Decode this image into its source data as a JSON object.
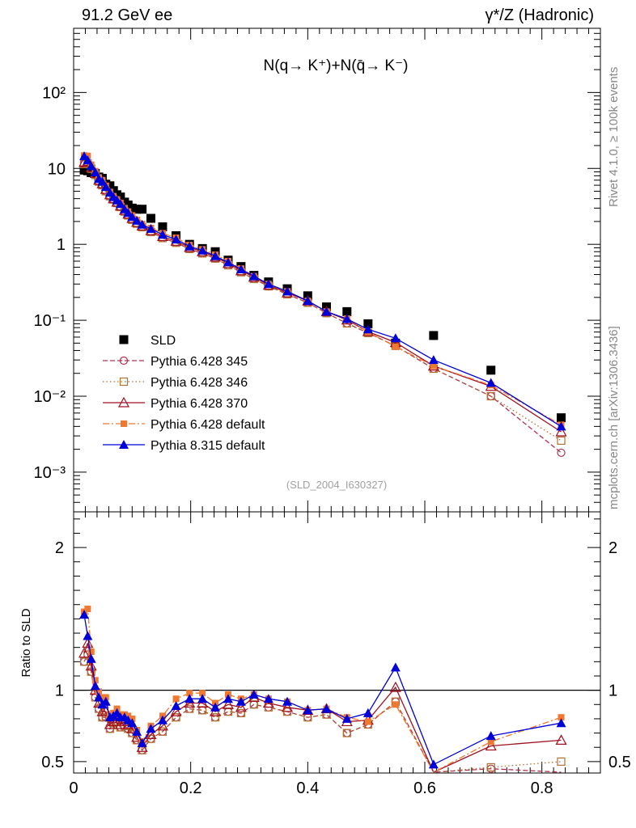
{
  "header": {
    "left": "91.2 GeV ee",
    "right": "γ*/Z (Hadronic)"
  },
  "side": {
    "rivet": "Rivet 4.1.0, ≥ 100k events",
    "site": "mcplots.cern.ch [arXiv:1306.3436]"
  },
  "chart_data": [
    {
      "type": "scatter",
      "panel": "main",
      "title": "N(q→ K⁺)+N(q̄→ K⁻)",
      "analysis_label": "(SLD_2004_I630327)",
      "xlabel": "",
      "ylabel": "",
      "yscale": "log",
      "xlim": [
        0,
        0.9
      ],
      "ylim": [
        0.0003,
        700
      ],
      "yticks": [
        "10⁻³",
        "10⁻²",
        "10⁻¹",
        "1",
        "10",
        "10²"
      ],
      "legend_position": "middle-left",
      "x": [
        0.018,
        0.024,
        0.03,
        0.037,
        0.043,
        0.049,
        0.055,
        0.062,
        0.068,
        0.074,
        0.08,
        0.087,
        0.093,
        0.1,
        0.108,
        0.117,
        0.132,
        0.152,
        0.175,
        0.198,
        0.22,
        0.242,
        0.264,
        0.286,
        0.308,
        0.333,
        0.365,
        0.4,
        0.432,
        0.467,
        0.503,
        0.55,
        0.615,
        0.713,
        0.833
      ],
      "series": [
        {
          "name": "SLD",
          "values": [
            9.5,
            9.3,
            8.8,
            8.6,
            7.7,
            7.4,
            6.2,
            5.9,
            5.1,
            4.5,
            4.2,
            3.6,
            3.3,
            3.0,
            2.9,
            2.9,
            2.2,
            1.7,
            1.3,
            1.0,
            0.88,
            0.8,
            0.62,
            0.51,
            0.39,
            0.32,
            0.26,
            0.21,
            0.15,
            0.13,
            0.09,
            0.05,
            0.063,
            0.022,
            0.0052
          ]
        },
        {
          "name": "Pythia 6.428 345",
          "values": [
            11.4,
            11.6,
            9.9,
            8.2,
            6.7,
            6.0,
            5.0,
            4.3,
            3.9,
            3.5,
            3.1,
            2.7,
            2.4,
            2.1,
            1.87,
            1.68,
            1.45,
            1.21,
            1.05,
            0.87,
            0.76,
            0.65,
            0.53,
            0.43,
            0.35,
            0.28,
            0.22,
            0.17,
            0.124,
            0.091,
            0.068,
            0.046,
            0.023,
            0.01,
            0.0018
          ]
        },
        {
          "name": "Pythia 6.428 346",
          "values": [
            11.4,
            11.6,
            9.9,
            8.2,
            6.7,
            6.0,
            5.0,
            4.3,
            3.9,
            3.5,
            3.1,
            2.7,
            2.4,
            2.1,
            1.87,
            1.68,
            1.45,
            1.21,
            1.05,
            0.87,
            0.76,
            0.65,
            0.53,
            0.43,
            0.35,
            0.28,
            0.22,
            0.17,
            0.124,
            0.091,
            0.068,
            0.046,
            0.023,
            0.01,
            0.0026
          ]
        },
        {
          "name": "Pythia 6.428 370",
          "values": [
            12.0,
            12.4,
            10.3,
            8.6,
            7.0,
            6.3,
            5.3,
            4.5,
            4.0,
            3.6,
            3.2,
            2.8,
            2.5,
            2.2,
            1.95,
            1.75,
            1.52,
            1.27,
            1.1,
            0.91,
            0.8,
            0.68,
            0.56,
            0.45,
            0.37,
            0.29,
            0.23,
            0.18,
            0.13,
            0.101,
            0.071,
            0.051,
            0.025,
            0.0135,
            0.0034
          ]
        },
        {
          "name": "Pythia 6.428 default",
          "values": [
            14.8,
            14.6,
            11.2,
            9.2,
            7.6,
            7.0,
            5.9,
            4.9,
            4.3,
            3.9,
            3.5,
            3.0,
            2.7,
            2.4,
            2.1,
            1.85,
            1.64,
            1.4,
            1.22,
            0.98,
            0.86,
            0.73,
            0.6,
            0.48,
            0.38,
            0.3,
            0.24,
            0.18,
            0.13,
            0.105,
            0.07,
            0.045,
            0.025,
            0.014,
            0.0042
          ]
        },
        {
          "name": "Pythia 8.315 default",
          "values": [
            14.5,
            12.8,
            10.7,
            8.9,
            7.3,
            6.7,
            5.7,
            4.8,
            4.2,
            3.8,
            3.4,
            2.9,
            2.6,
            2.3,
            2.05,
            1.82,
            1.6,
            1.34,
            1.16,
            0.94,
            0.83,
            0.7,
            0.58,
            0.47,
            0.38,
            0.3,
            0.24,
            0.18,
            0.13,
            0.104,
            0.076,
            0.058,
            0.03,
            0.015,
            0.004
          ]
        }
      ]
    },
    {
      "type": "line",
      "panel": "ratio",
      "ylabel": "Ratio to SLD",
      "xlabel": "",
      "xlim": [
        0,
        0.9
      ],
      "ylim": [
        0.42,
        2.25
      ],
      "xticks": [
        "0",
        "0.2",
        "0.4",
        "0.6",
        "0.8"
      ],
      "yticks": [
        "0.5",
        "1",
        "2"
      ],
      "reference_line": 1,
      "x": [
        0.018,
        0.024,
        0.03,
        0.037,
        0.043,
        0.049,
        0.055,
        0.062,
        0.068,
        0.074,
        0.08,
        0.087,
        0.093,
        0.1,
        0.108,
        0.117,
        0.132,
        0.152,
        0.175,
        0.198,
        0.22,
        0.242,
        0.264,
        0.286,
        0.308,
        0.333,
        0.365,
        0.4,
        0.432,
        0.467,
        0.503,
        0.55,
        0.615,
        0.713,
        0.833
      ],
      "series": [
        {
          "name": "Pythia 6.428 345",
          "values": [
            1.2,
            1.25,
            1.13,
            0.95,
            0.87,
            0.81,
            0.81,
            0.73,
            0.77,
            0.78,
            0.74,
            0.75,
            0.73,
            0.7,
            0.65,
            0.58,
            0.66,
            0.71,
            0.81,
            0.87,
            0.86,
            0.81,
            0.85,
            0.84,
            0.9,
            0.88,
            0.85,
            0.81,
            0.83,
            0.7,
            0.76,
            0.92,
            0.37,
            0.45,
            0.35
          ]
        },
        {
          "name": "Pythia 6.428 346",
          "values": [
            1.2,
            1.25,
            1.13,
            0.95,
            0.87,
            0.81,
            0.81,
            0.73,
            0.77,
            0.78,
            0.74,
            0.75,
            0.73,
            0.7,
            0.65,
            0.58,
            0.66,
            0.71,
            0.81,
            0.87,
            0.86,
            0.81,
            0.85,
            0.84,
            0.9,
            0.88,
            0.85,
            0.81,
            0.83,
            0.7,
            0.76,
            0.92,
            0.37,
            0.46,
            0.5
          ]
        },
        {
          "name": "Pythia 6.428 370",
          "values": [
            1.26,
            1.33,
            1.17,
            1.0,
            0.91,
            0.85,
            0.85,
            0.76,
            0.78,
            0.8,
            0.76,
            0.78,
            0.76,
            0.73,
            0.67,
            0.6,
            0.69,
            0.75,
            0.85,
            0.91,
            0.91,
            0.85,
            0.9,
            0.88,
            0.95,
            0.91,
            0.88,
            0.86,
            0.87,
            0.78,
            0.79,
            1.02,
            0.4,
            0.61,
            0.65
          ]
        },
        {
          "name": "Pythia 6.428 default",
          "values": [
            1.55,
            1.57,
            1.27,
            1.07,
            0.99,
            0.95,
            0.95,
            0.83,
            0.84,
            0.87,
            0.83,
            0.83,
            0.82,
            0.8,
            0.72,
            0.64,
            0.75,
            0.82,
            0.94,
            0.98,
            0.98,
            0.91,
            0.97,
            0.94,
            0.97,
            0.94,
            0.92,
            0.86,
            0.87,
            0.81,
            0.78,
            0.9,
            0.4,
            0.64,
            0.81
          ]
        },
        {
          "name": "Pythia 8.315 default",
          "values": [
            1.53,
            1.38,
            1.22,
            1.03,
            0.95,
            0.9,
            0.92,
            0.81,
            0.82,
            0.84,
            0.81,
            0.81,
            0.79,
            0.77,
            0.71,
            0.63,
            0.73,
            0.79,
            0.89,
            0.94,
            0.94,
            0.88,
            0.94,
            0.92,
            0.97,
            0.94,
            0.92,
            0.86,
            0.87,
            0.8,
            0.84,
            1.16,
            0.48,
            0.68,
            0.77
          ]
        }
      ]
    }
  ],
  "series_styles": [
    {
      "name": "SLD",
      "color": "#000000",
      "marker": "square-filled",
      "line": "none"
    },
    {
      "name": "Pythia 6.428 345",
      "color": "#b03050",
      "marker": "circle-open",
      "line": "dashed"
    },
    {
      "name": "Pythia 6.428 346",
      "color": "#b07030",
      "marker": "square-open",
      "line": "dotted"
    },
    {
      "name": "Pythia 6.428 370",
      "color": "#a01020",
      "marker": "triangle-open",
      "line": "solid"
    },
    {
      "name": "Pythia 6.428 default",
      "color": "#f07830",
      "marker": "square-filled-small",
      "line": "dashdot"
    },
    {
      "name": "Pythia 8.315 default",
      "color": "#0000d8",
      "marker": "triangle-filled",
      "line": "solid"
    }
  ]
}
